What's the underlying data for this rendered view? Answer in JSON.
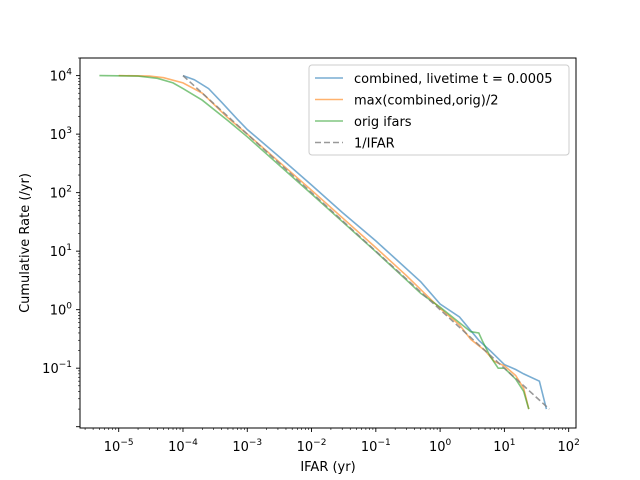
{
  "chart_data": {
    "type": "line",
    "title": "",
    "xlabel": "IFAR (yr)",
    "ylabel": "Cumulative Rate (/yr)",
    "xscale": "log",
    "yscale": "log",
    "xlim": [
      2.5e-06,
      130
    ],
    "ylim": [
      0.0095,
      20000
    ],
    "grid": false,
    "legend_position": "top-right",
    "x_ticks": [
      {
        "base": "10",
        "exp": "−5",
        "value": 1e-05
      },
      {
        "base": "10",
        "exp": "−4",
        "value": 0.0001
      },
      {
        "base": "10",
        "exp": "−3",
        "value": 0.001
      },
      {
        "base": "10",
        "exp": "−2",
        "value": 0.01
      },
      {
        "base": "10",
        "exp": "−1",
        "value": 0.1
      },
      {
        "base": "10",
        "exp": "0",
        "value": 1
      },
      {
        "base": "10",
        "exp": "1",
        "value": 10
      },
      {
        "base": "10",
        "exp": "2",
        "value": 100
      }
    ],
    "y_ticks": [
      {
        "base": "10",
        "exp": "−1",
        "value": 0.1
      },
      {
        "base": "10",
        "exp": "0",
        "value": 1
      },
      {
        "base": "10",
        "exp": "1",
        "value": 10
      },
      {
        "base": "10",
        "exp": "2",
        "value": 100
      },
      {
        "base": "10",
        "exp": "3",
        "value": 1000
      },
      {
        "base": "10",
        "exp": "4",
        "value": 10000
      }
    ],
    "series": [
      {
        "name": "combined, livetime t = 0.0005",
        "color": "#1f77b4",
        "opacity": 0.6,
        "dash": "solid",
        "points": [
          [
            0.0001,
            10000
          ],
          [
            0.00015,
            8500
          ],
          [
            0.00025,
            6000
          ],
          [
            0.0004,
            3500
          ],
          [
            0.0007,
            1800
          ],
          [
            0.001,
            1200
          ],
          [
            0.003,
            430
          ],
          [
            0.01,
            135
          ],
          [
            0.03,
            46
          ],
          [
            0.1,
            15
          ],
          [
            0.2,
            7.5
          ],
          [
            0.5,
            3.0
          ],
          [
            1.0,
            1.25
          ],
          [
            2.0,
            0.75
          ],
          [
            4.0,
            0.3
          ],
          [
            6.0,
            0.2
          ],
          [
            10,
            0.115
          ],
          [
            15,
            0.095
          ],
          [
            20,
            0.08
          ],
          [
            35,
            0.06
          ],
          [
            45,
            0.02
          ]
        ]
      },
      {
        "name": "max(combined,orig)/2",
        "color": "#ff7f0e",
        "opacity": 0.6,
        "dash": "solid",
        "points": [
          [
            1e-05,
            10000
          ],
          [
            3e-05,
            9800
          ],
          [
            5e-05,
            9200
          ],
          [
            0.0001,
            7500
          ],
          [
            0.0002,
            5000
          ],
          [
            0.0005,
            1900
          ],
          [
            0.001,
            1000
          ],
          [
            0.01,
            110
          ],
          [
            0.1,
            11.5
          ],
          [
            0.3,
            3.8
          ],
          [
            1.0,
            1.05
          ],
          [
            2.0,
            0.55
          ],
          [
            3.0,
            0.31
          ],
          [
            5.0,
            0.2
          ],
          [
            7.0,
            0.13
          ],
          [
            10,
            0.11
          ],
          [
            15,
            0.075
          ],
          [
            20,
            0.045
          ],
          [
            24,
            0.02
          ]
        ]
      },
      {
        "name": "orig ifars",
        "color": "#2ca02c",
        "opacity": 0.6,
        "dash": "solid",
        "points": [
          [
            5e-06,
            10000
          ],
          [
            2e-05,
            9800
          ],
          [
            4e-05,
            9000
          ],
          [
            7e-05,
            7500
          ],
          [
            0.0001,
            6000
          ],
          [
            0.0002,
            3800
          ],
          [
            0.0005,
            1700
          ],
          [
            0.001,
            900
          ],
          [
            0.01,
            95
          ],
          [
            0.1,
            9.8
          ],
          [
            0.3,
            3.2
          ],
          [
            0.5,
            1.9
          ],
          [
            1.0,
            1.1
          ],
          [
            2.0,
            0.6
          ],
          [
            3.0,
            0.42
          ],
          [
            4.0,
            0.4
          ],
          [
            4.5,
            0.3
          ],
          [
            6.0,
            0.16
          ],
          [
            8.0,
            0.1
          ],
          [
            10,
            0.1
          ],
          [
            15,
            0.065
          ],
          [
            20,
            0.04
          ],
          [
            24,
            0.02
          ]
        ]
      },
      {
        "name": "1/IFAR",
        "color": "#808080",
        "opacity": 0.8,
        "dash": "dashed",
        "points": [
          [
            0.0001,
            10000
          ],
          [
            50,
            0.02
          ]
        ]
      }
    ]
  }
}
